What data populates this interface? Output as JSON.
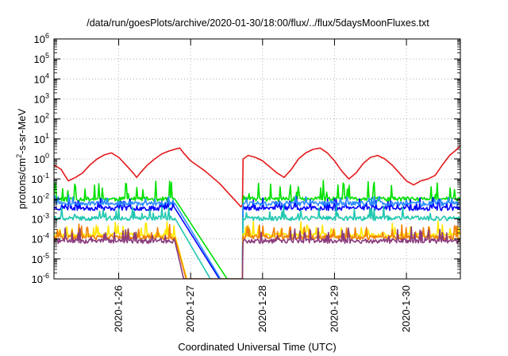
{
  "chart_data": {
    "type": "line",
    "title": "/data/run/goesPlots/archive/2020-01-30/18:00/flux/../flux/5daysMoonFluxes.txt",
    "xlabel": "Coordinated Universal Time (UTC)",
    "ylabel": {
      "prefix": "protons/cm",
      "sup": "2",
      "suffix": "-s-sr-MeV"
    },
    "x_ticks": [
      "2020-1-26",
      "2020-1-27",
      "2020-1-28",
      "2020-1-29",
      "2020-1-30"
    ],
    "xlim_days": [
      25.1,
      30.75
    ],
    "y_scale": "log",
    "ylim": [
      1e-06,
      1000000.0
    ],
    "y_ticks": [
      {
        "base": "10",
        "exp": "-6"
      },
      {
        "base": "10",
        "exp": "-5"
      },
      {
        "base": "10",
        "exp": "-4"
      },
      {
        "base": "10",
        "exp": "-3"
      },
      {
        "base": "10",
        "exp": "-2"
      },
      {
        "base": "10",
        "exp": "-1"
      },
      {
        "base": "10",
        "exp": "0"
      },
      {
        "base": "10",
        "exp": "1"
      },
      {
        "base": "10",
        "exp": "2"
      },
      {
        "base": "10",
        "exp": "3"
      },
      {
        "base": "10",
        "exp": "4"
      },
      {
        "base": "10",
        "exp": "5"
      },
      {
        "base": "10",
        "exp": "6"
      }
    ],
    "grid": true,
    "series": [
      {
        "color": "#e41a1c",
        "points": [
          [
            25.1,
            0.5
          ],
          [
            25.2,
            0.3
          ],
          [
            25.25,
            0.15
          ],
          [
            25.3,
            0.08
          ],
          [
            25.4,
            0.12
          ],
          [
            25.5,
            0.2
          ],
          [
            25.6,
            0.5
          ],
          [
            25.7,
            1.0
          ],
          [
            25.8,
            1.6
          ],
          [
            25.9,
            2.0
          ],
          [
            26.0,
            1.2
          ],
          [
            26.1,
            0.5
          ],
          [
            26.2,
            0.2
          ],
          [
            26.25,
            0.12
          ],
          [
            26.3,
            0.2
          ],
          [
            26.4,
            0.5
          ],
          [
            26.5,
            1.0
          ],
          [
            26.6,
            1.8
          ],
          [
            26.7,
            2.5
          ],
          [
            26.8,
            3.2
          ],
          [
            26.85,
            3.5
          ],
          [
            26.9,
            2.0
          ],
          [
            27.0,
            0.8
          ],
          [
            27.2,
            0.25
          ],
          [
            27.4,
            0.06
          ],
          [
            27.6,
            0.01
          ],
          [
            27.7,
            0.004
          ],
          [
            27.72,
            0.005
          ],
          [
            27.73,
            1.0
          ],
          [
            27.8,
            1.5
          ],
          [
            27.9,
            1.2
          ],
          [
            28.0,
            0.8
          ],
          [
            28.1,
            0.4
          ],
          [
            28.2,
            0.2
          ],
          [
            28.3,
            0.12
          ],
          [
            28.4,
            0.3
          ],
          [
            28.5,
            1.0
          ],
          [
            28.6,
            2.0
          ],
          [
            28.7,
            3.0
          ],
          [
            28.8,
            3.5
          ],
          [
            28.9,
            2.0
          ],
          [
            29.0,
            0.8
          ],
          [
            29.1,
            0.25
          ],
          [
            29.2,
            0.1
          ],
          [
            29.3,
            0.2
          ],
          [
            29.4,
            0.6
          ],
          [
            29.5,
            1.2
          ],
          [
            29.6,
            1.5
          ],
          [
            29.7,
            1.0
          ],
          [
            29.8,
            0.5
          ],
          [
            29.9,
            0.2
          ],
          [
            30.0,
            0.08
          ],
          [
            30.1,
            0.05
          ],
          [
            30.2,
            0.08
          ],
          [
            30.3,
            0.1
          ],
          [
            30.4,
            0.15
          ],
          [
            30.5,
            0.5
          ],
          [
            30.6,
            1.5
          ],
          [
            30.7,
            3.0
          ],
          [
            30.75,
            4.5
          ]
        ]
      },
      {
        "color": "#00e000",
        "baseline": 0.01,
        "spike_amp": 6,
        "decay": 2.5,
        "seed": 11
      },
      {
        "color": "#0000ff",
        "baseline": 0.0035,
        "spike_amp": 2,
        "decay": 2.6,
        "seed": 23
      },
      {
        "color": "#2b8cff",
        "baseline": 0.006,
        "spike_amp": 1.3,
        "decay": 2.7,
        "seed": 31
      },
      {
        "color": "#20c8b0",
        "baseline": 0.0011,
        "spike_amp": 2.5,
        "decay": 2.8,
        "seed": 41
      },
      {
        "color": "#ffe600",
        "baseline": 0.00016,
        "spike_amp": 3,
        "decay": 6,
        "seed": 53
      },
      {
        "color": "#f08000",
        "baseline": 0.00012,
        "spike_amp": 3,
        "decay": 6,
        "seed": 61
      },
      {
        "color": "#8a3b7d",
        "baseline": 8e-05,
        "spike_amp": 3.5,
        "decay": 7,
        "seed": 71
      }
    ]
  }
}
